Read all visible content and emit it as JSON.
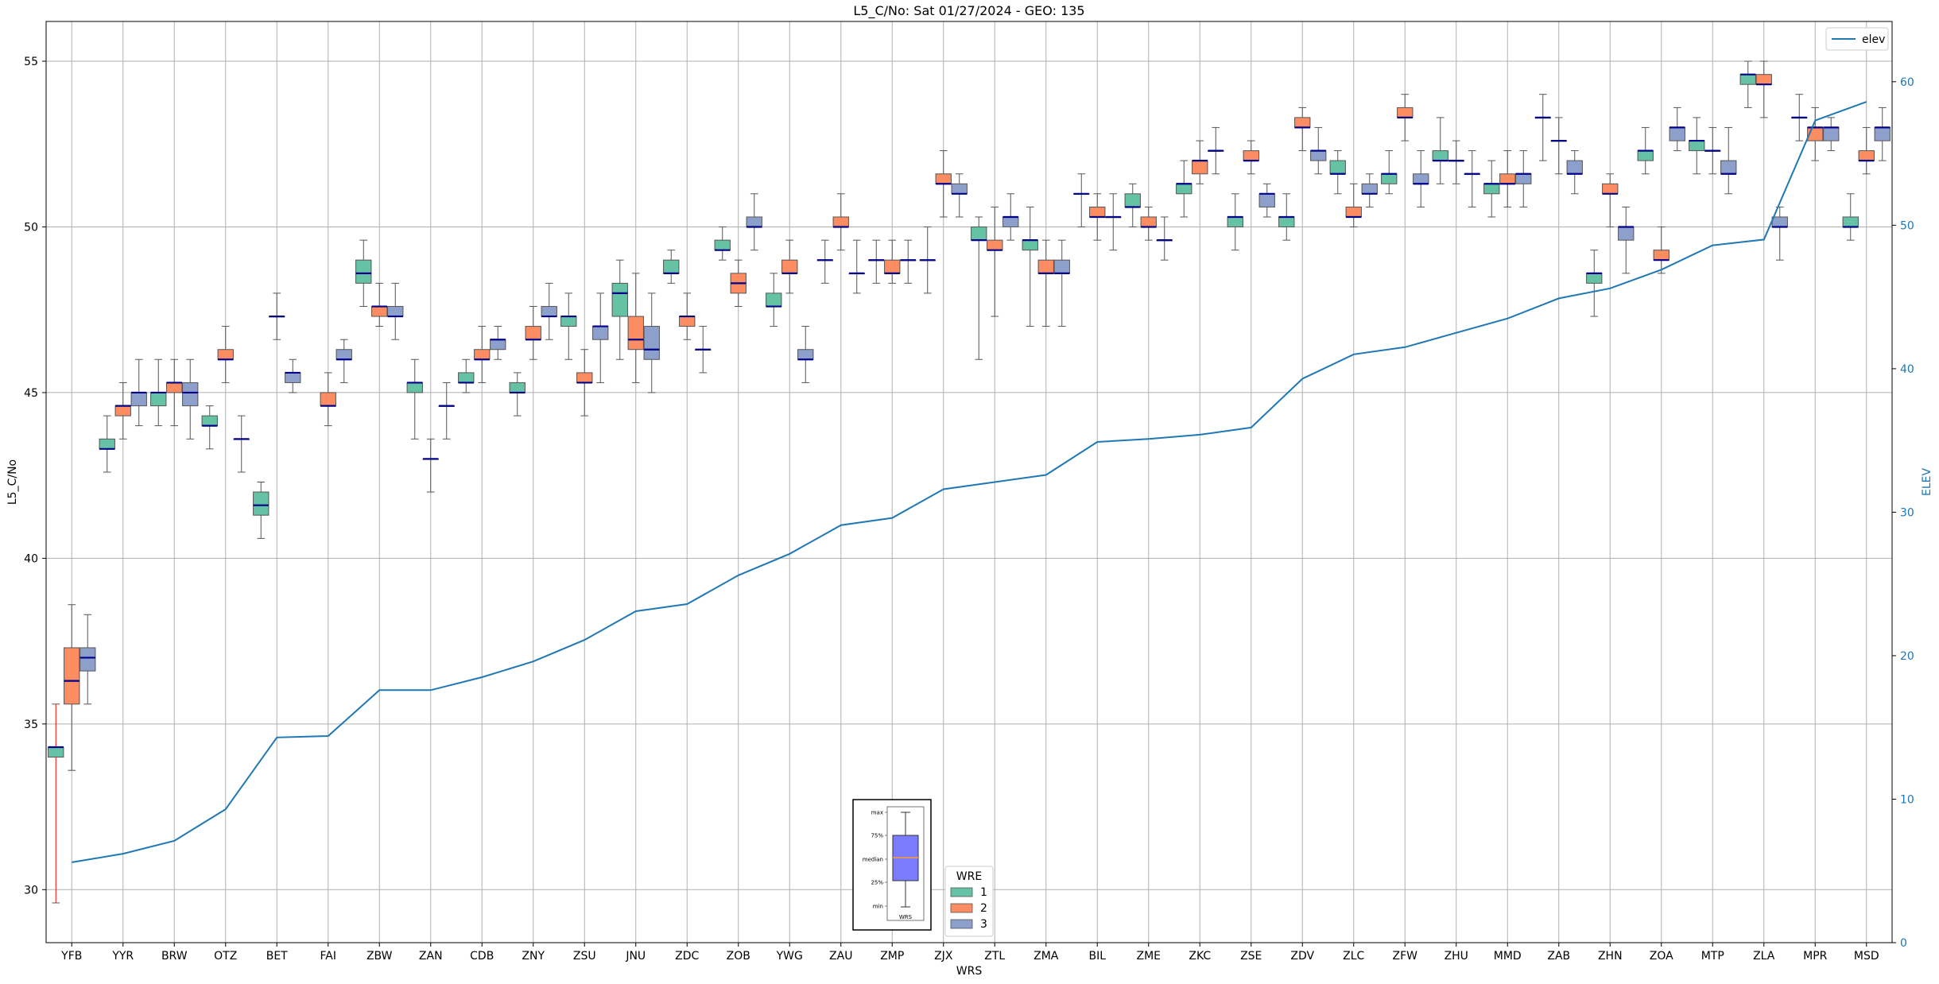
{
  "chart_data": {
    "type": "box",
    "title": "L5_C/No: Sat 01/27/2024 - GEO: 135",
    "xlabel": "WRS",
    "ylabel": "L5_C/No",
    "y2label": "ELEV",
    "ylim": [
      28.4,
      56.2
    ],
    "y2lim": [
      0,
      64.2
    ],
    "yticks": [
      30,
      35,
      40,
      45,
      50,
      55
    ],
    "y2ticks": [
      0,
      10,
      20,
      30,
      40,
      50,
      60
    ],
    "grid": true,
    "categories": [
      "YFB",
      "YYR",
      "BRW",
      "OTZ",
      "BET",
      "FAI",
      "ZBW",
      "ZAN",
      "CDB",
      "ZNY",
      "ZSU",
      "JNU",
      "ZDC",
      "ZOB",
      "YWG",
      "ZAU",
      "ZMP",
      "ZJX",
      "ZTL",
      "ZMA",
      "BIL",
      "ZME",
      "ZKC",
      "ZSE",
      "ZDV",
      "ZLC",
      "ZFW",
      "ZHU",
      "MMD",
      "ZAB",
      "ZHN",
      "ZOA",
      "MTP",
      "ZLA",
      "MPR",
      "MSD"
    ],
    "legend_title": "WRE",
    "series": [
      {
        "name": "1",
        "color": "#66c2a5",
        "boxes": [
          {
            "min": 29.6,
            "q1": 34.0,
            "median": 34.3,
            "q3": 34.3,
            "max": 35.6,
            "whisker_color": "#ff0000"
          },
          {
            "min": 42.6,
            "q1": 43.3,
            "median": 43.3,
            "q3": 43.6,
            "max": 44.3
          },
          {
            "min": 44.0,
            "q1": 44.6,
            "median": 45.0,
            "q3": 45.0,
            "max": 46.0
          },
          {
            "min": 43.3,
            "q1": 44.0,
            "median": 44.0,
            "q3": 44.3,
            "max": 44.6
          },
          {
            "min": 40.6,
            "q1": 41.3,
            "median": 41.6,
            "q3": 42.0,
            "max": 42.3
          },
          null,
          {
            "min": 47.6,
            "q1": 48.3,
            "median": 48.6,
            "q3": 49.0,
            "max": 49.6
          },
          {
            "min": 43.6,
            "q1": 45.0,
            "median": 45.3,
            "q3": 45.3,
            "max": 46.0
          },
          {
            "min": 45.0,
            "q1": 45.3,
            "median": 45.3,
            "q3": 45.6,
            "max": 46.0
          },
          {
            "min": 44.3,
            "q1": 45.0,
            "median": 45.0,
            "q3": 45.3,
            "max": 45.6
          },
          {
            "min": 46.0,
            "q1": 47.0,
            "median": 47.3,
            "q3": 47.3,
            "max": 48.0
          },
          {
            "min": 46.0,
            "q1": 47.3,
            "median": 48.0,
            "q3": 48.3,
            "max": 49.0
          },
          {
            "min": 48.3,
            "q1": 48.6,
            "median": 48.6,
            "q3": 49.0,
            "max": 49.3
          },
          {
            "min": 49.0,
            "q1": 49.3,
            "median": 49.3,
            "q3": 49.6,
            "max": 50.0
          },
          {
            "min": 47.0,
            "q1": 47.6,
            "median": 47.6,
            "q3": 48.0,
            "max": 48.6
          },
          {
            "min": 48.3,
            "q1": 49.0,
            "median": 49.0,
            "q3": 49.0,
            "max": 49.6
          },
          {
            "min": 48.3,
            "q1": 49.0,
            "median": 49.0,
            "q3": 49.0,
            "max": 49.6
          },
          {
            "min": 48.0,
            "q1": 49.0,
            "median": 49.0,
            "q3": 49.0,
            "max": 50.0
          },
          {
            "min": 46.0,
            "q1": 49.6,
            "median": 49.6,
            "q3": 50.0,
            "max": 50.3
          },
          {
            "min": 47.0,
            "q1": 49.3,
            "median": 49.6,
            "q3": 49.6,
            "max": 50.6
          },
          {
            "min": 50.0,
            "q1": 51.0,
            "median": 51.0,
            "q3": 51.0,
            "max": 51.6
          },
          {
            "min": 50.0,
            "q1": 50.6,
            "median": 50.6,
            "q3": 51.0,
            "max": 51.3
          },
          {
            "min": 50.3,
            "q1": 51.0,
            "median": 51.3,
            "q3": 51.3,
            "max": 52.0
          },
          {
            "min": 49.3,
            "q1": 50.0,
            "median": 50.3,
            "q3": 50.3,
            "max": 51.0
          },
          {
            "min": 49.6,
            "q1": 50.0,
            "median": 50.3,
            "q3": 50.3,
            "max": 51.0
          },
          {
            "min": 51.0,
            "q1": 51.6,
            "median": 51.6,
            "q3": 52.0,
            "max": 52.3
          },
          {
            "min": 51.0,
            "q1": 51.3,
            "median": 51.6,
            "q3": 51.6,
            "max": 52.3
          },
          {
            "min": 51.3,
            "q1": 52.0,
            "median": 52.0,
            "q3": 52.3,
            "max": 53.3
          },
          {
            "min": 50.3,
            "q1": 51.0,
            "median": 51.3,
            "q3": 51.3,
            "max": 52.0
          },
          {
            "min": 52.0,
            "q1": 53.3,
            "median": 53.3,
            "q3": 53.3,
            "max": 54.0
          },
          {
            "min": 47.3,
            "q1": 48.3,
            "median": 48.6,
            "q3": 48.6,
            "max": 49.3
          },
          {
            "min": 51.6,
            "q1": 52.0,
            "median": 52.3,
            "q3": 52.3,
            "max": 53.0
          },
          {
            "min": 51.6,
            "q1": 52.3,
            "median": 52.6,
            "q3": 52.6,
            "max": 53.3
          },
          {
            "min": 53.6,
            "q1": 54.3,
            "median": 54.6,
            "q3": 54.6,
            "max": 55.0
          },
          {
            "min": 52.6,
            "q1": 53.3,
            "median": 53.3,
            "q3": 53.3,
            "max": 54.0
          },
          {
            "min": 49.6,
            "q1": 50.0,
            "median": 50.0,
            "q3": 50.3,
            "max": 51.0
          }
        ]
      },
      {
        "name": "2",
        "color": "#fc8d62",
        "boxes": [
          {
            "min": 33.6,
            "q1": 35.6,
            "median": 36.3,
            "q3": 37.3,
            "max": 38.6
          },
          {
            "min": 43.6,
            "q1": 44.3,
            "median": 44.6,
            "q3": 44.6,
            "max": 45.3
          },
          {
            "min": 44.0,
            "q1": 45.0,
            "median": 45.3,
            "q3": 45.3,
            "max": 46.0
          },
          {
            "min": 45.3,
            "q1": 46.0,
            "median": 46.0,
            "q3": 46.3,
            "max": 47.0
          },
          {
            "min": 46.6,
            "q1": 47.3,
            "median": 47.3,
            "q3": 47.3,
            "max": 48.0
          },
          {
            "min": 44.0,
            "q1": 44.6,
            "median": 44.6,
            "q3": 45.0,
            "max": 45.6
          },
          {
            "min": 47.0,
            "q1": 47.3,
            "median": 47.6,
            "q3": 47.6,
            "max": 48.3
          },
          {
            "min": 42.0,
            "q1": 43.0,
            "median": 43.0,
            "q3": 43.0,
            "max": 43.6
          },
          {
            "min": 45.3,
            "q1": 46.0,
            "median": 46.0,
            "q3": 46.3,
            "max": 47.0
          },
          {
            "min": 46.0,
            "q1": 46.6,
            "median": 46.6,
            "q3": 47.0,
            "max": 47.6
          },
          {
            "min": 44.3,
            "q1": 45.3,
            "median": 45.3,
            "q3": 45.6,
            "max": 46.3
          },
          {
            "min": 45.3,
            "q1": 46.3,
            "median": 46.6,
            "q3": 47.3,
            "max": 48.6
          },
          {
            "min": 46.6,
            "q1": 47.0,
            "median": 47.3,
            "q3": 47.3,
            "max": 48.0
          },
          {
            "min": 47.6,
            "q1": 48.0,
            "median": 48.3,
            "q3": 48.6,
            "max": 49.0
          },
          {
            "min": 48.0,
            "q1": 48.6,
            "median": 48.6,
            "q3": 49.0,
            "max": 49.6
          },
          {
            "min": 49.3,
            "q1": 50.0,
            "median": 50.0,
            "q3": 50.3,
            "max": 51.0
          },
          {
            "min": 48.3,
            "q1": 48.6,
            "median": 48.6,
            "q3": 49.0,
            "max": 49.6
          },
          {
            "min": 50.3,
            "q1": 51.3,
            "median": 51.3,
            "q3": 51.6,
            "max": 52.3
          },
          {
            "min": 47.3,
            "q1": 49.3,
            "median": 49.3,
            "q3": 49.6,
            "max": 50.6
          },
          {
            "min": 47.0,
            "q1": 48.6,
            "median": 48.6,
            "q3": 49.0,
            "max": 49.6
          },
          {
            "min": 49.6,
            "q1": 50.3,
            "median": 50.3,
            "q3": 50.6,
            "max": 51.0
          },
          {
            "min": 49.6,
            "q1": 50.0,
            "median": 50.0,
            "q3": 50.3,
            "max": 50.6
          },
          {
            "min": 51.3,
            "q1": 51.6,
            "median": 52.0,
            "q3": 52.0,
            "max": 52.6
          },
          {
            "min": 51.6,
            "q1": 52.0,
            "median": 52.0,
            "q3": 52.3,
            "max": 52.6
          },
          {
            "min": 52.3,
            "q1": 53.0,
            "median": 53.0,
            "q3": 53.3,
            "max": 53.6
          },
          {
            "min": 50.0,
            "q1": 50.3,
            "median": 50.3,
            "q3": 50.6,
            "max": 51.3
          },
          {
            "min": 52.6,
            "q1": 53.3,
            "median": 53.3,
            "q3": 53.6,
            "max": 54.0
          },
          {
            "min": 51.3,
            "q1": 52.0,
            "median": 52.0,
            "q3": 52.0,
            "max": 52.6
          },
          {
            "min": 50.6,
            "q1": 51.3,
            "median": 51.3,
            "q3": 51.6,
            "max": 52.3
          },
          {
            "min": 51.6,
            "q1": 52.6,
            "median": 52.6,
            "q3": 52.6,
            "max": 53.3
          },
          {
            "min": 50.0,
            "q1": 51.0,
            "median": 51.0,
            "q3": 51.3,
            "max": 51.6
          },
          {
            "min": 48.6,
            "q1": 49.0,
            "median": 49.0,
            "q3": 49.3,
            "max": 50.0
          },
          {
            "min": 51.6,
            "q1": 52.3,
            "median": 52.3,
            "q3": 52.3,
            "max": 53.0
          },
          {
            "min": 53.3,
            "q1": 54.3,
            "median": 54.3,
            "q3": 54.6,
            "max": 55.0
          },
          {
            "min": 52.0,
            "q1": 52.6,
            "median": 53.0,
            "q3": 53.0,
            "max": 53.6
          },
          {
            "min": 51.6,
            "q1": 52.0,
            "median": 52.0,
            "q3": 52.3,
            "max": 53.0
          }
        ]
      },
      {
        "name": "3",
        "color": "#8da0cb",
        "boxes": [
          {
            "min": 35.6,
            "q1": 36.6,
            "median": 37.0,
            "q3": 37.3,
            "max": 38.3
          },
          {
            "min": 44.0,
            "q1": 44.6,
            "median": 45.0,
            "q3": 45.0,
            "max": 46.0
          },
          {
            "min": 43.6,
            "q1": 44.6,
            "median": 45.0,
            "q3": 45.3,
            "max": 46.0
          },
          {
            "min": 42.6,
            "q1": 43.6,
            "median": 43.6,
            "q3": 43.6,
            "max": 44.3
          },
          {
            "min": 45.0,
            "q1": 45.3,
            "median": 45.6,
            "q3": 45.6,
            "max": 46.0
          },
          {
            "min": 45.3,
            "q1": 46.0,
            "median": 46.0,
            "q3": 46.3,
            "max": 46.6
          },
          {
            "min": 46.6,
            "q1": 47.3,
            "median": 47.3,
            "q3": 47.6,
            "max": 48.3
          },
          {
            "min": 43.6,
            "q1": 44.6,
            "median": 44.6,
            "q3": 44.6,
            "max": 45.3
          },
          {
            "min": 46.0,
            "q1": 46.3,
            "median": 46.6,
            "q3": 46.6,
            "max": 47.0
          },
          {
            "min": 46.6,
            "q1": 47.3,
            "median": 47.3,
            "q3": 47.6,
            "max": 48.3
          },
          {
            "min": 45.3,
            "q1": 46.6,
            "median": 47.0,
            "q3": 47.0,
            "max": 48.0
          },
          {
            "min": 45.0,
            "q1": 46.0,
            "median": 46.3,
            "q3": 47.0,
            "max": 48.0
          },
          {
            "min": 45.6,
            "q1": 46.3,
            "median": 46.3,
            "q3": 46.3,
            "max": 47.0
          },
          {
            "min": 49.3,
            "q1": 50.0,
            "median": 50.0,
            "q3": 50.3,
            "max": 51.0
          },
          {
            "min": 45.3,
            "q1": 46.0,
            "median": 46.0,
            "q3": 46.3,
            "max": 47.0
          },
          {
            "min": 48.0,
            "q1": 48.6,
            "median": 48.6,
            "q3": 48.6,
            "max": 49.6
          },
          {
            "min": 48.3,
            "q1": 49.0,
            "median": 49.0,
            "q3": 49.0,
            "max": 49.6
          },
          {
            "min": 50.3,
            "q1": 51.0,
            "median": 51.0,
            "q3": 51.3,
            "max": 51.6
          },
          {
            "min": 49.6,
            "q1": 50.0,
            "median": 50.3,
            "q3": 50.3,
            "max": 51.0
          },
          {
            "min": 47.0,
            "q1": 48.6,
            "median": 48.6,
            "q3": 49.0,
            "max": 49.6
          },
          {
            "min": 49.3,
            "q1": 50.3,
            "median": 50.3,
            "q3": 50.3,
            "max": 51.0
          },
          {
            "min": 49.0,
            "q1": 49.6,
            "median": 49.6,
            "q3": 49.6,
            "max": 50.3
          },
          {
            "min": 51.6,
            "q1": 52.3,
            "median": 52.3,
            "q3": 52.3,
            "max": 53.0
          },
          {
            "min": 50.3,
            "q1": 50.6,
            "median": 51.0,
            "q3": 51.0,
            "max": 51.3
          },
          {
            "min": 51.6,
            "q1": 52.0,
            "median": 52.3,
            "q3": 52.3,
            "max": 53.0
          },
          {
            "min": 50.6,
            "q1": 51.0,
            "median": 51.0,
            "q3": 51.3,
            "max": 51.6
          },
          {
            "min": 50.6,
            "q1": 51.3,
            "median": 51.3,
            "q3": 51.6,
            "max": 52.3
          },
          {
            "min": 50.6,
            "q1": 51.6,
            "median": 51.6,
            "q3": 51.6,
            "max": 52.3
          },
          {
            "min": 50.6,
            "q1": 51.3,
            "median": 51.6,
            "q3": 51.6,
            "max": 52.3
          },
          {
            "min": 51.0,
            "q1": 51.6,
            "median": 51.6,
            "q3": 52.0,
            "max": 52.3
          },
          {
            "min": 48.6,
            "q1": 49.6,
            "median": 50.0,
            "q3": 50.0,
            "max": 50.6
          },
          {
            "min": 52.3,
            "q1": 52.6,
            "median": 53.0,
            "q3": 53.0,
            "max": 53.6
          },
          {
            "min": 51.0,
            "q1": 51.6,
            "median": 51.6,
            "q3": 52.0,
            "max": 53.0
          },
          {
            "min": 49.0,
            "q1": 50.0,
            "median": 50.0,
            "q3": 50.3,
            "max": 50.6
          },
          {
            "min": 52.3,
            "q1": 52.6,
            "median": 53.0,
            "q3": 53.0,
            "max": 53.3
          },
          {
            "min": 52.0,
            "q1": 52.6,
            "median": 53.0,
            "q3": 53.0,
            "max": 53.6
          }
        ]
      }
    ],
    "line_series": {
      "name": "elev",
      "color": "#1f77b4",
      "axis": "right",
      "values": [
        5.6,
        6.2,
        7.1,
        9.3,
        14.3,
        14.4,
        17.6,
        17.6,
        18.5,
        19.6,
        21.1,
        23.1,
        23.6,
        25.6,
        27.1,
        29.1,
        29.6,
        31.6,
        32.1,
        32.6,
        34.9,
        35.1,
        35.4,
        35.9,
        39.3,
        41.0,
        41.5,
        42.5,
        43.5,
        44.9,
        45.6,
        46.9,
        48.6,
        49.0,
        57.3,
        58.6
      ]
    },
    "legend_line_position": "top-right",
    "legend_box_position": "bottom-center",
    "key_inset": {
      "labels": [
        "max",
        "75%",
        "median",
        "25%",
        "min"
      ],
      "xlabel": "WRS",
      "box_color": "#7b7bff",
      "median_color": "#ff9933"
    }
  }
}
